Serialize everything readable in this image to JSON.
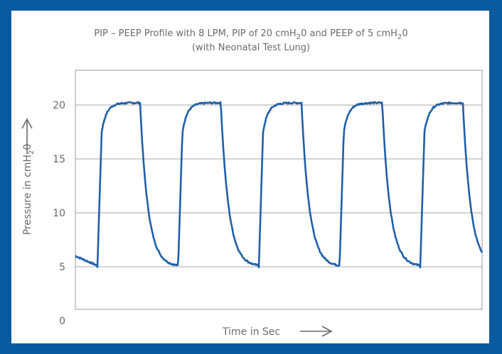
{
  "chart_data": {
    "type": "line",
    "title_line1_prefix": "PIP – PEEP Profile with 8 LPM, PIP of 20 cmH",
    "title_line1_mid": "0 and PEEP of 5 cmH",
    "title_line1_end": "0",
    "title_sub": "2",
    "title_line2": "(with Neonatal Test Lung)",
    "xlabel": "Time in Sec",
    "ylabel_prefix": "Pressure in cmH",
    "ylabel_sub": "2",
    "ylabel_end": "0",
    "ylim": [
      0,
      22
    ],
    "yticks": [
      "0",
      "5",
      "10",
      "15",
      "20"
    ],
    "ytick_values": [
      0,
      5,
      10,
      15,
      20
    ],
    "grid": true,
    "line_color": "#1f5fa8",
    "cycles": 5,
    "xlim": [
      0,
      5
    ],
    "peep": 5,
    "pip": 20.2
  }
}
